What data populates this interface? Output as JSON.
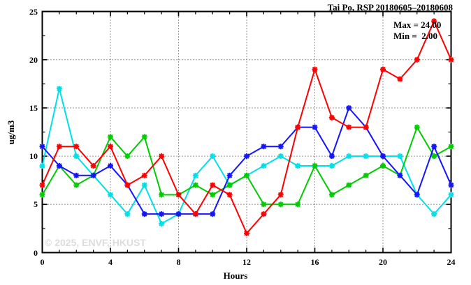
{
  "header": {
    "title": "Tai Po, RSP 20180605–20180608"
  },
  "annotations": {
    "max": "Max = 24.00",
    "min": "Min =  2.00"
  },
  "watermark": "© 2025, ENVF, HKUST",
  "chart_data": {
    "type": "line",
    "title": "Tai Po, RSP 20180605–20180608",
    "xlabel": "Hours",
    "ylabel": "ug/m3",
    "xlim": [
      0,
      24
    ],
    "ylim": [
      0,
      25
    ],
    "x_major_ticks": [
      0,
      4,
      8,
      12,
      16,
      20,
      24
    ],
    "y_major_ticks": [
      0,
      5,
      10,
      15,
      20,
      25
    ],
    "grid_x_lines": [
      4,
      8,
      12,
      16,
      20
    ],
    "grid_y_lines": [
      5,
      10,
      15,
      20
    ],
    "grid": true,
    "legend": "none",
    "marker": "asterisk",
    "x": [
      0,
      1,
      2,
      3,
      4,
      5,
      6,
      7,
      8,
      9,
      10,
      11,
      12,
      13,
      14,
      15,
      16,
      17,
      18,
      19,
      20,
      21,
      22,
      23,
      24
    ],
    "series": [
      {
        "name": "cyan-line",
        "color": "#00e0e8",
        "values": [
          9,
          17,
          10,
          8,
          6,
          4,
          7,
          3,
          4,
          8,
          10,
          7,
          8,
          9,
          10,
          9,
          9,
          9,
          10,
          10,
          10,
          10,
          6,
          4,
          6
        ]
      },
      {
        "name": "green-line",
        "color": "#00cc00",
        "values": [
          6,
          9,
          7,
          8,
          12,
          10,
          12,
          6,
          6,
          7,
          6,
          7,
          8,
          5,
          5,
          5,
          9,
          6,
          7,
          8,
          9,
          8,
          13,
          10,
          11
        ]
      },
      {
        "name": "blue-line",
        "color": "#1414ff",
        "values": [
          11,
          9,
          8,
          8,
          9,
          7,
          4,
          4,
          4,
          4,
          4,
          8,
          10,
          11,
          11,
          13,
          13,
          10,
          15,
          13,
          10,
          8,
          6,
          11,
          7
        ]
      },
      {
        "name": "red-line",
        "color": "#ff0000",
        "values": [
          7,
          11,
          11,
          9,
          11,
          7,
          8,
          10,
          6,
          4,
          7,
          6,
          2,
          4,
          6,
          13,
          19,
          14,
          13,
          13,
          19,
          18,
          20,
          24,
          20
        ]
      }
    ],
    "stats": {
      "max": 24.0,
      "min": 2.0
    }
  }
}
